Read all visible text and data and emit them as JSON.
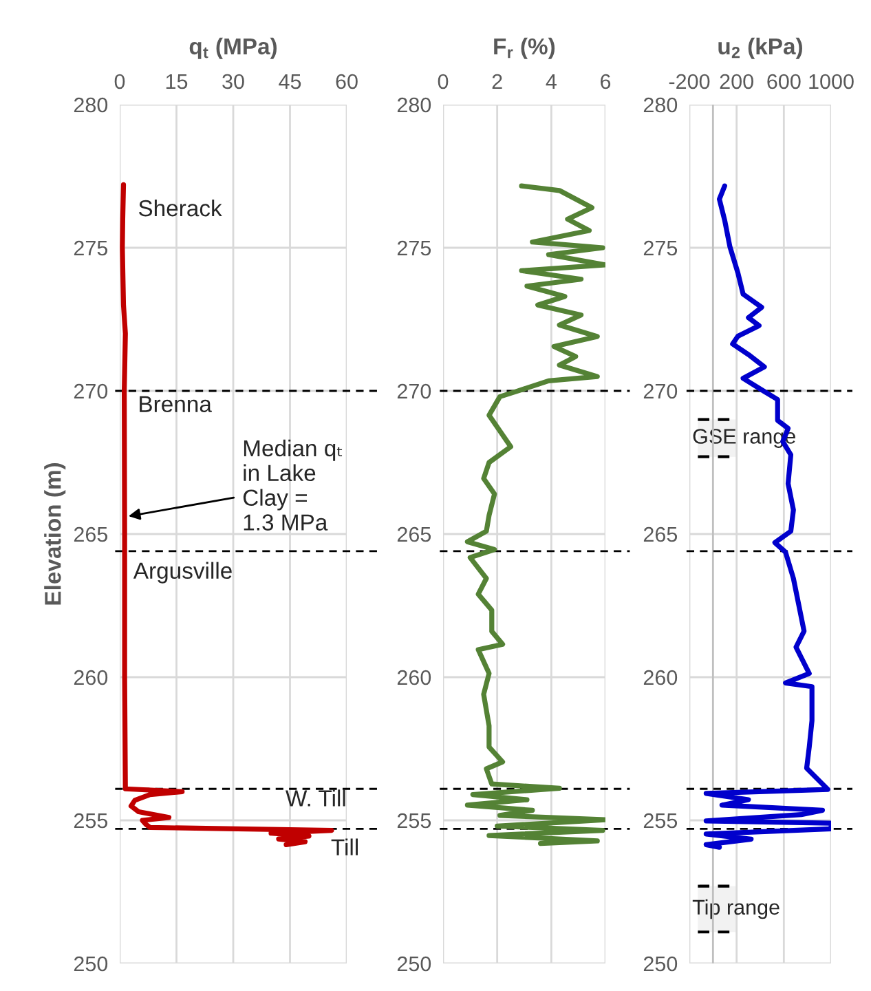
{
  "chart_data": [
    {
      "type": "line",
      "xlabel": "q$_{t}$ (MPa)",
      "ylabel": "Elevation (m)",
      "xlim": [
        0,
        60
      ],
      "xticks": [
        0,
        15,
        30,
        45,
        60
      ],
      "ylim": [
        250,
        280
      ],
      "yticks": [
        250,
        255,
        260,
        265,
        270,
        275,
        280
      ],
      "grid": true,
      "series": [
        {
          "color": "#c00000",
          "x": [
            1.0,
            0.8,
            0.7,
            1.0,
            1.5,
            1.2,
            1.3,
            1.3,
            1.5,
            16.5,
            8,
            4,
            3,
            5,
            13,
            6,
            7,
            8,
            56,
            40,
            50,
            42,
            49,
            44
          ],
          "values": [
            277.2,
            276,
            275,
            273,
            272,
            270,
            265,
            260,
            256.1,
            256.0,
            255.9,
            255.7,
            255.5,
            255.3,
            255.1,
            255.0,
            254.85,
            254.75,
            254.65,
            254.55,
            254.45,
            254.35,
            254.25,
            254.15
          ]
        }
      ],
      "ref_lines": [
        {
          "axis": "y",
          "value": 270,
          "color": "#000000",
          "line_style": "dashed"
        },
        {
          "axis": "y",
          "value": 264.4,
          "color": "#000000",
          "line_style": "dashed"
        },
        {
          "axis": "y",
          "value": 256.1,
          "color": "#000000",
          "line_style": "dashed"
        },
        {
          "axis": "y",
          "value": 254.7,
          "color": "#000000",
          "line_style": "dashed"
        }
      ],
      "annotations": [
        "Sherack",
        "Brenna",
        {
          "text": "Median qₜ\nin Lake\nClay =\n1.3 MPa",
          "x": 1.3,
          "y": 265.6
        },
        "Argusville",
        "W. Till",
        "Till"
      ]
    },
    {
      "type": "line",
      "xlabel": "F$_{r}$ (%)",
      "xlim": [
        0,
        6
      ],
      "xticks": [
        0,
        2,
        4,
        6
      ],
      "ylim": [
        250,
        280
      ],
      "yticks": [
        250,
        255,
        260,
        265,
        270,
        275,
        280
      ],
      "grid": true,
      "series": [
        {
          "color": "#548235",
          "x": [
            2.9,
            4.3,
            5.5,
            4.6,
            5.4,
            3.3,
            5.9,
            3.9,
            6.0,
            2.9,
            5.1,
            3.1,
            4.5,
            3.5,
            5.1,
            4.3,
            5.7,
            4.1,
            4.9,
            4.3,
            5.7,
            3.9,
            2.7,
            2.1,
            1.7,
            2.1,
            2.5,
            1.7,
            1.5,
            1.9,
            1.7,
            1.6,
            0.9,
            1.9,
            1.0,
            1.6,
            1.3,
            1.8,
            1.8,
            2.2,
            1.3,
            1.7,
            1.5,
            1.7,
            1.7,
            2.2,
            1.6,
            1.8,
            4.3,
            1.1,
            3.1,
            0.9,
            3.3,
            2.1,
            6.0,
            2.0,
            5.9,
            1.7,
            5.7,
            3.6
          ],
          "values": [
            277.16,
            277.0,
            276.4,
            276.0,
            275.6,
            275.2,
            275.0,
            274.76,
            274.4,
            274.2,
            273.9,
            273.66,
            273.3,
            273.0,
            272.65,
            272.3,
            271.9,
            271.55,
            271.2,
            270.9,
            270.5,
            270.35,
            269.98,
            269.8,
            269.15,
            268.6,
            268.05,
            267.5,
            266.94,
            266.4,
            265.65,
            265.1,
            264.73,
            264.46,
            264.18,
            263.45,
            262.9,
            262.34,
            261.6,
            261.15,
            260.96,
            260.13,
            259.4,
            258.3,
            257.56,
            257.04,
            256.8,
            256.27,
            256.12,
            255.9,
            255.72,
            255.53,
            255.35,
            255.17,
            255.02,
            254.8,
            254.65,
            254.47,
            254.28,
            254.19
          ]
        }
      ],
      "ref_lines": [
        {
          "axis": "y",
          "value": 270,
          "color": "#000000",
          "line_style": "dashed"
        },
        {
          "axis": "y",
          "value": 264.4,
          "color": "#000000",
          "line_style": "dashed"
        },
        {
          "axis": "y",
          "value": 256.1,
          "color": "#000000",
          "line_style": "dashed"
        },
        {
          "axis": "y",
          "value": 254.7,
          "color": "#000000",
          "line_style": "dashed"
        }
      ]
    },
    {
      "type": "line",
      "xlabel": "u$_{2}$ (kPa)",
      "xlim": [
        -200,
        1000
      ],
      "xticks": [
        -200,
        200,
        600,
        1000
      ],
      "ylim": [
        250,
        280
      ],
      "yticks": [
        250,
        255,
        260,
        265,
        270,
        275,
        280
      ],
      "grid": true,
      "series": [
        {
          "color": "#0000cc",
          "x": [
            99,
            54,
            99,
            143,
            211,
            255,
            412,
            300,
            390,
            211,
            166,
            300,
            435,
            255,
            435,
            547,
            547,
            636,
            591,
            659,
            636,
            681,
            659,
            524,
            614,
            681,
            726,
            771,
            703,
            815,
            614,
            838,
            838,
            815,
            793,
            972,
            -58,
            300,
            76,
            927,
            748,
            -58,
            1000,
            1000,
            -58,
            323,
            -58,
            54
          ],
          "values": [
            277.16,
            276.7,
            275.96,
            275.04,
            274.12,
            273.38,
            272.92,
            272.56,
            272.28,
            271.91,
            271.64,
            271.27,
            270.84,
            270.44,
            269.98,
            269.7,
            268.97,
            268.69,
            268.23,
            267.77,
            266.76,
            265.84,
            265.1,
            264.7,
            264.37,
            263.45,
            262.53,
            261.61,
            261.05,
            260.13,
            259.8,
            259.67,
            258.48,
            257.56,
            256.82,
            256.08,
            255.94,
            255.72,
            255.53,
            255.35,
            255.2,
            254.98,
            254.9,
            254.7,
            254.52,
            254.34,
            254.15,
            254.06
          ]
        }
      ],
      "ref_lines": [
        {
          "axis": "y",
          "value": 270,
          "color": "#000000",
          "line_style": "dashed"
        },
        {
          "axis": "y",
          "value": 264.4,
          "color": "#000000",
          "line_style": "dashed"
        },
        {
          "axis": "y",
          "value": 256.1,
          "color": "#000000",
          "line_style": "dashed"
        },
        {
          "axis": "y",
          "value": 254.7,
          "color": "#000000",
          "line_style": "dashed"
        },
        {
          "axis": "x",
          "value": 0,
          "color": "#bfbfbf",
          "line_style": "solid"
        }
      ],
      "bands": [
        {
          "axis": "y",
          "from": 267.7,
          "to": 269.0,
          "label": "GSE range"
        },
        {
          "axis": "y",
          "from": 251.1,
          "to": 252.7,
          "label": "Tip range"
        }
      ]
    }
  ]
}
